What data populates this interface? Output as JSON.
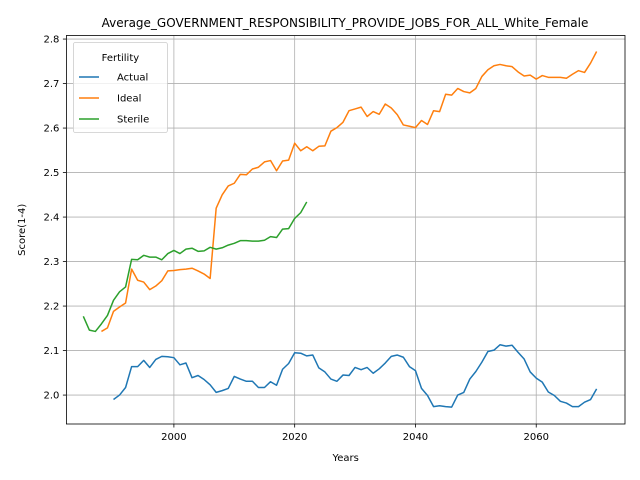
{
  "chart_data": {
    "type": "line",
    "title": "Average_GOVERNMENT_RESPONSIBILITY_PROVIDE_JOBS_FOR_ALL_White_Female",
    "xlabel": "Years",
    "ylabel": "Score(1-4)",
    "xlim": [
      1982.2,
      2074.7
    ],
    "ylim": [
      1.935,
      2.808
    ],
    "xticks": [
      2000,
      2020,
      2040,
      2060
    ],
    "yticks": [
      2.0,
      2.1,
      2.2,
      2.3,
      2.4,
      2.5,
      2.6,
      2.7,
      2.8
    ],
    "grid": true,
    "legend": {
      "title": "Fertility",
      "placement": "upper-left"
    },
    "series": [
      {
        "name": "Actual",
        "color": "#1f77b4",
        "x": [
          1990,
          1991,
          1992,
          1993,
          1994,
          1995,
          1996,
          1997,
          1998,
          1999,
          2000,
          2001,
          2002,
          2003,
          2004,
          2005,
          2006,
          2007,
          2008,
          2009,
          2010,
          2011,
          2012,
          2013,
          2014,
          2015,
          2016,
          2017,
          2018,
          2019,
          2020,
          2021,
          2022,
          2023,
          2024,
          2025,
          2026,
          2027,
          2028,
          2029,
          2030,
          2031,
          2032,
          2033,
          2034,
          2035,
          2036,
          2037,
          2038,
          2039,
          2040,
          2041,
          2042,
          2043,
          2044,
          2045,
          2046,
          2047,
          2048,
          2049,
          2050,
          2051,
          2052,
          2053,
          2054,
          2055,
          2056,
          2057,
          2058,
          2059,
          2060,
          2061,
          2062,
          2063,
          2064,
          2065,
          2066,
          2067,
          2068,
          2069,
          2070
        ],
        "values": [
          1.99,
          2.0,
          2.017,
          2.064,
          2.064,
          2.078,
          2.062,
          2.08,
          2.087,
          2.086,
          2.084,
          2.068,
          2.072,
          2.039,
          2.044,
          2.035,
          2.023,
          2.006,
          2.01,
          2.015,
          2.042,
          2.036,
          2.031,
          2.031,
          2.017,
          2.017,
          2.03,
          2.022,
          2.058,
          2.071,
          2.095,
          2.094,
          2.088,
          2.09,
          2.061,
          2.052,
          2.036,
          2.031,
          2.045,
          2.044,
          2.062,
          2.057,
          2.062,
          2.049,
          2.059,
          2.072,
          2.087,
          2.09,
          2.085,
          2.064,
          2.055,
          2.015,
          1.999,
          1.974,
          1.976,
          1.974,
          1.973,
          2.0,
          2.006,
          2.036,
          2.053,
          2.074,
          2.098,
          2.101,
          2.113,
          2.11,
          2.112,
          2.096,
          2.081,
          2.052,
          2.038,
          2.029,
          2.007,
          1.999,
          1.986,
          1.982,
          1.974,
          1.974,
          1.984,
          1.99,
          2.014
        ]
      },
      {
        "name": "Ideal",
        "color": "#ff7f0e",
        "x": [
          1988,
          1989,
          1990,
          1991,
          1992,
          1993,
          1994,
          1995,
          1996,
          1997,
          1998,
          1999,
          2000,
          2001,
          2002,
          2003,
          2004,
          2005,
          2006,
          2007,
          2008,
          2009,
          2010,
          2011,
          2012,
          2013,
          2014,
          2015,
          2016,
          2017,
          2018,
          2019,
          2020,
          2021,
          2022,
          2023,
          2024,
          2025,
          2026,
          2027,
          2028,
          2029,
          2030,
          2031,
          2032,
          2033,
          2034,
          2035,
          2036,
          2037,
          2038,
          2039,
          2040,
          2041,
          2042,
          2043,
          2044,
          2045,
          2046,
          2047,
          2048,
          2049,
          2050,
          2051,
          2052,
          2053,
          2054,
          2055,
          2056,
          2057,
          2058,
          2059,
          2060,
          2061,
          2062,
          2063,
          2064,
          2065,
          2066,
          2067,
          2068,
          2069,
          2070
        ],
        "values": [
          2.143,
          2.151,
          2.188,
          2.198,
          2.207,
          2.283,
          2.258,
          2.254,
          2.237,
          2.245,
          2.257,
          2.279,
          2.28,
          2.282,
          2.283,
          2.285,
          2.279,
          2.272,
          2.262,
          2.42,
          2.45,
          2.47,
          2.476,
          2.496,
          2.495,
          2.508,
          2.512,
          2.524,
          2.527,
          2.504,
          2.526,
          2.528,
          2.566,
          2.549,
          2.558,
          2.549,
          2.559,
          2.56,
          2.593,
          2.601,
          2.613,
          2.639,
          2.643,
          2.647,
          2.626,
          2.637,
          2.631,
          2.654,
          2.645,
          2.63,
          2.607,
          2.604,
          2.601,
          2.617,
          2.608,
          2.639,
          2.637,
          2.676,
          2.674,
          2.689,
          2.682,
          2.679,
          2.689,
          2.716,
          2.731,
          2.74,
          2.743,
          2.74,
          2.738,
          2.726,
          2.717,
          2.719,
          2.71,
          2.718,
          2.714,
          2.714,
          2.714,
          2.712,
          2.721,
          2.729,
          2.725,
          2.746,
          2.772
        ]
      },
      {
        "name": "Sterile",
        "color": "#2ca02c",
        "x": [
          1985,
          1986,
          1987,
          1988,
          1989,
          1990,
          1991,
          1992,
          1993,
          1994,
          1995,
          1996,
          1997,
          1998,
          1999,
          2000,
          2001,
          2002,
          2003,
          2004,
          2005,
          2006,
          2007,
          2008,
          2009,
          2010,
          2011,
          2012,
          2013,
          2014,
          2015,
          2016,
          2017,
          2018,
          2019,
          2020,
          2021,
          2022
        ],
        "values": [
          2.177,
          2.146,
          2.143,
          2.16,
          2.179,
          2.213,
          2.232,
          2.243,
          2.305,
          2.304,
          2.314,
          2.31,
          2.31,
          2.304,
          2.318,
          2.325,
          2.318,
          2.328,
          2.33,
          2.323,
          2.324,
          2.332,
          2.328,
          2.331,
          2.337,
          2.341,
          2.347,
          2.347,
          2.346,
          2.346,
          2.348,
          2.356,
          2.354,
          2.373,
          2.374,
          2.397,
          2.41,
          2.434
        ]
      }
    ]
  }
}
